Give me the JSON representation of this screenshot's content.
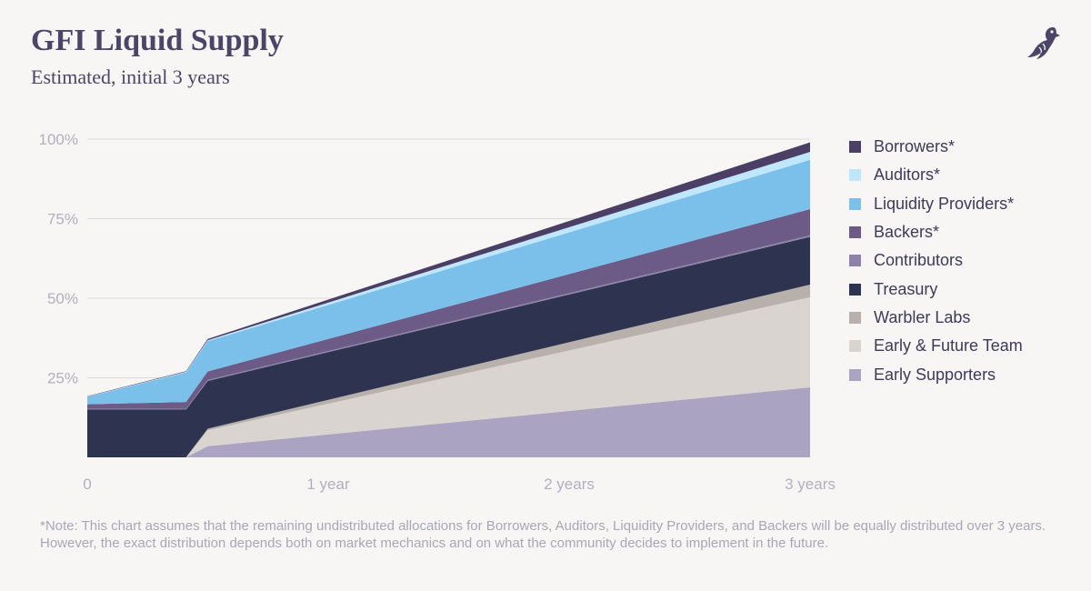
{
  "header": {
    "title": "GFI Liquid Supply",
    "subtitle": "Estimated, initial 3 years",
    "logo_icon": "warbler-bird-icon"
  },
  "chart_data": {
    "type": "area",
    "stacked": true,
    "title": "GFI Liquid Supply",
    "subtitle": "Estimated, initial 3 years",
    "x_unit": "years",
    "xlim": [
      0,
      3
    ],
    "ylim": [
      0,
      100
    ],
    "x_ticks": [
      0,
      1,
      2,
      3
    ],
    "x_tick_labels": [
      "0",
      "1 year",
      "2 years",
      "3 years"
    ],
    "y_ticks": [
      25,
      50,
      75,
      100
    ],
    "y_tick_labels": [
      "25%",
      "50%",
      "75%",
      "100%"
    ],
    "grid": true,
    "legend_position": "right",
    "x": [
      0,
      0.41,
      0.5,
      3
    ],
    "series": [
      {
        "name": "Early Supporters",
        "color": "#aaa3c2",
        "values": [
          0,
          0,
          3.5,
          22
        ]
      },
      {
        "name": "Early & Future Team",
        "color": "#d9d4cf",
        "values": [
          0,
          0,
          5,
          28.3
        ]
      },
      {
        "name": "Warbler Labs",
        "color": "#b8b1ab",
        "values": [
          0,
          0,
          0.5,
          4
        ]
      },
      {
        "name": "Treasury",
        "color": "#2e3350",
        "values": [
          15,
          15,
          15,
          15
        ]
      },
      {
        "name": "Contributors",
        "color": "#8e82ab",
        "values": [
          0.2,
          0.2,
          0.3,
          0.5
        ]
      },
      {
        "name": "Backers*",
        "color": "#6b5b86",
        "values": [
          1.5,
          2.2,
          2.7,
          8.2
        ]
      },
      {
        "name": "Liquidity Providers*",
        "color": "#7ac0ea",
        "values": [
          2.3,
          9.3,
          9.5,
          15.5
        ]
      },
      {
        "name": "Auditors*",
        "color": "#bfe6fb",
        "values": [
          0.1,
          0.2,
          0.3,
          2.5
        ]
      },
      {
        "name": "Borrowers*",
        "color": "#4b3f66",
        "values": [
          0.1,
          0.2,
          0.4,
          3
        ]
      }
    ],
    "legend": [
      {
        "name": "Borrowers*",
        "color": "#4b3f66"
      },
      {
        "name": "Auditors*",
        "color": "#bfe6fb"
      },
      {
        "name": "Liquidity Providers*",
        "color": "#7ac0ea"
      },
      {
        "name": "Backers*",
        "color": "#6b5b86"
      },
      {
        "name": "Contributors",
        "color": "#8e82ab"
      },
      {
        "name": "Treasury",
        "color": "#2e3350"
      },
      {
        "name": "Warbler Labs",
        "color": "#b8b1ab"
      },
      {
        "name": "Early & Future Team",
        "color": "#d9d4cf"
      },
      {
        "name": "Early Supporters",
        "color": "#aaa3c2"
      }
    ]
  },
  "footer": {
    "note": "*Note: This chart assumes that the remaining undistributed allocations for Borrowers, Auditors, Liquidity Providers, and Backers will be equally distributed over 3 years. However, the exact distribution depends both on market mechanics and on what the community decides to implement in the future."
  }
}
